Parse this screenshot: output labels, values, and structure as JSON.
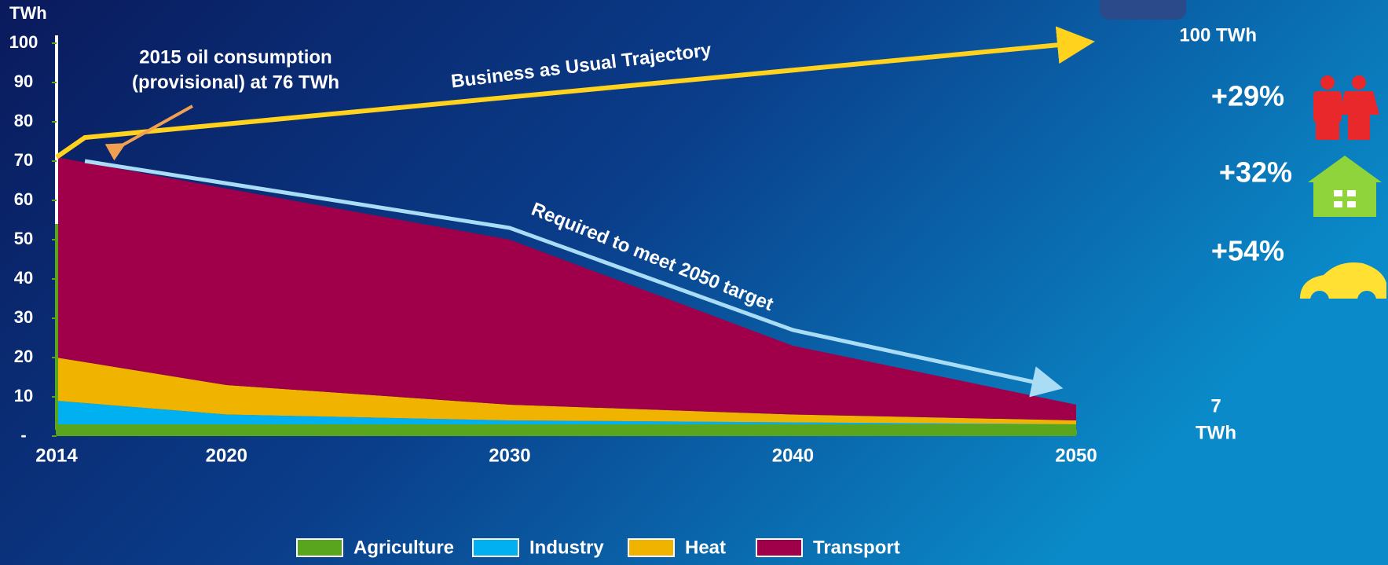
{
  "chart_data": {
    "type": "stacked_area",
    "y_label": "TWh",
    "x": [
      2014,
      2020,
      2030,
      2040,
      2050
    ],
    "series": [
      {
        "name": "Agriculture",
        "color": "#5aa51e",
        "values": [
          3,
          3,
          3,
          3,
          3
        ]
      },
      {
        "name": "Industry",
        "color": "#00b0f0",
        "values": [
          6,
          2.5,
          1,
          0.5,
          0
        ]
      },
      {
        "name": "Heat",
        "color": "#f0b400",
        "values": [
          11,
          7.5,
          4,
          2,
          1
        ]
      },
      {
        "name": "Transport",
        "color": "#a0004a",
        "values": [
          51,
          50,
          42,
          17.5,
          4
        ]
      }
    ],
    "lines": [
      {
        "name": "Business as Usual Trajectory",
        "color": "#ffd21e",
        "x": [
          2014,
          2015,
          2050
        ],
        "values": [
          71,
          76,
          100
        ]
      },
      {
        "name": "Required to meet 2050 target",
        "color": "#a8ddf5",
        "x": [
          2015,
          2030,
          2040,
          2049
        ],
        "values": [
          70,
          53,
          27,
          13
        ]
      }
    ],
    "xlim": [
      2014,
      2050
    ],
    "xticks": [
      2014,
      2020,
      2030,
      2040,
      2050
    ],
    "ylim": [
      0,
      100
    ],
    "yticks": [
      {
        "value": 0,
        "label": "-"
      },
      10,
      20,
      30,
      40,
      50,
      60,
      70,
      80,
      90,
      100
    ],
    "annotations": {
      "oil_2015": [
        "2015 oil consumption",
        "(provisional) at 76 TWh"
      ],
      "bau_end": "100 TWh",
      "target_end": [
        "7",
        "TWh"
      ],
      "growth": [
        "+29%",
        "+32%",
        "+54%"
      ]
    }
  }
}
